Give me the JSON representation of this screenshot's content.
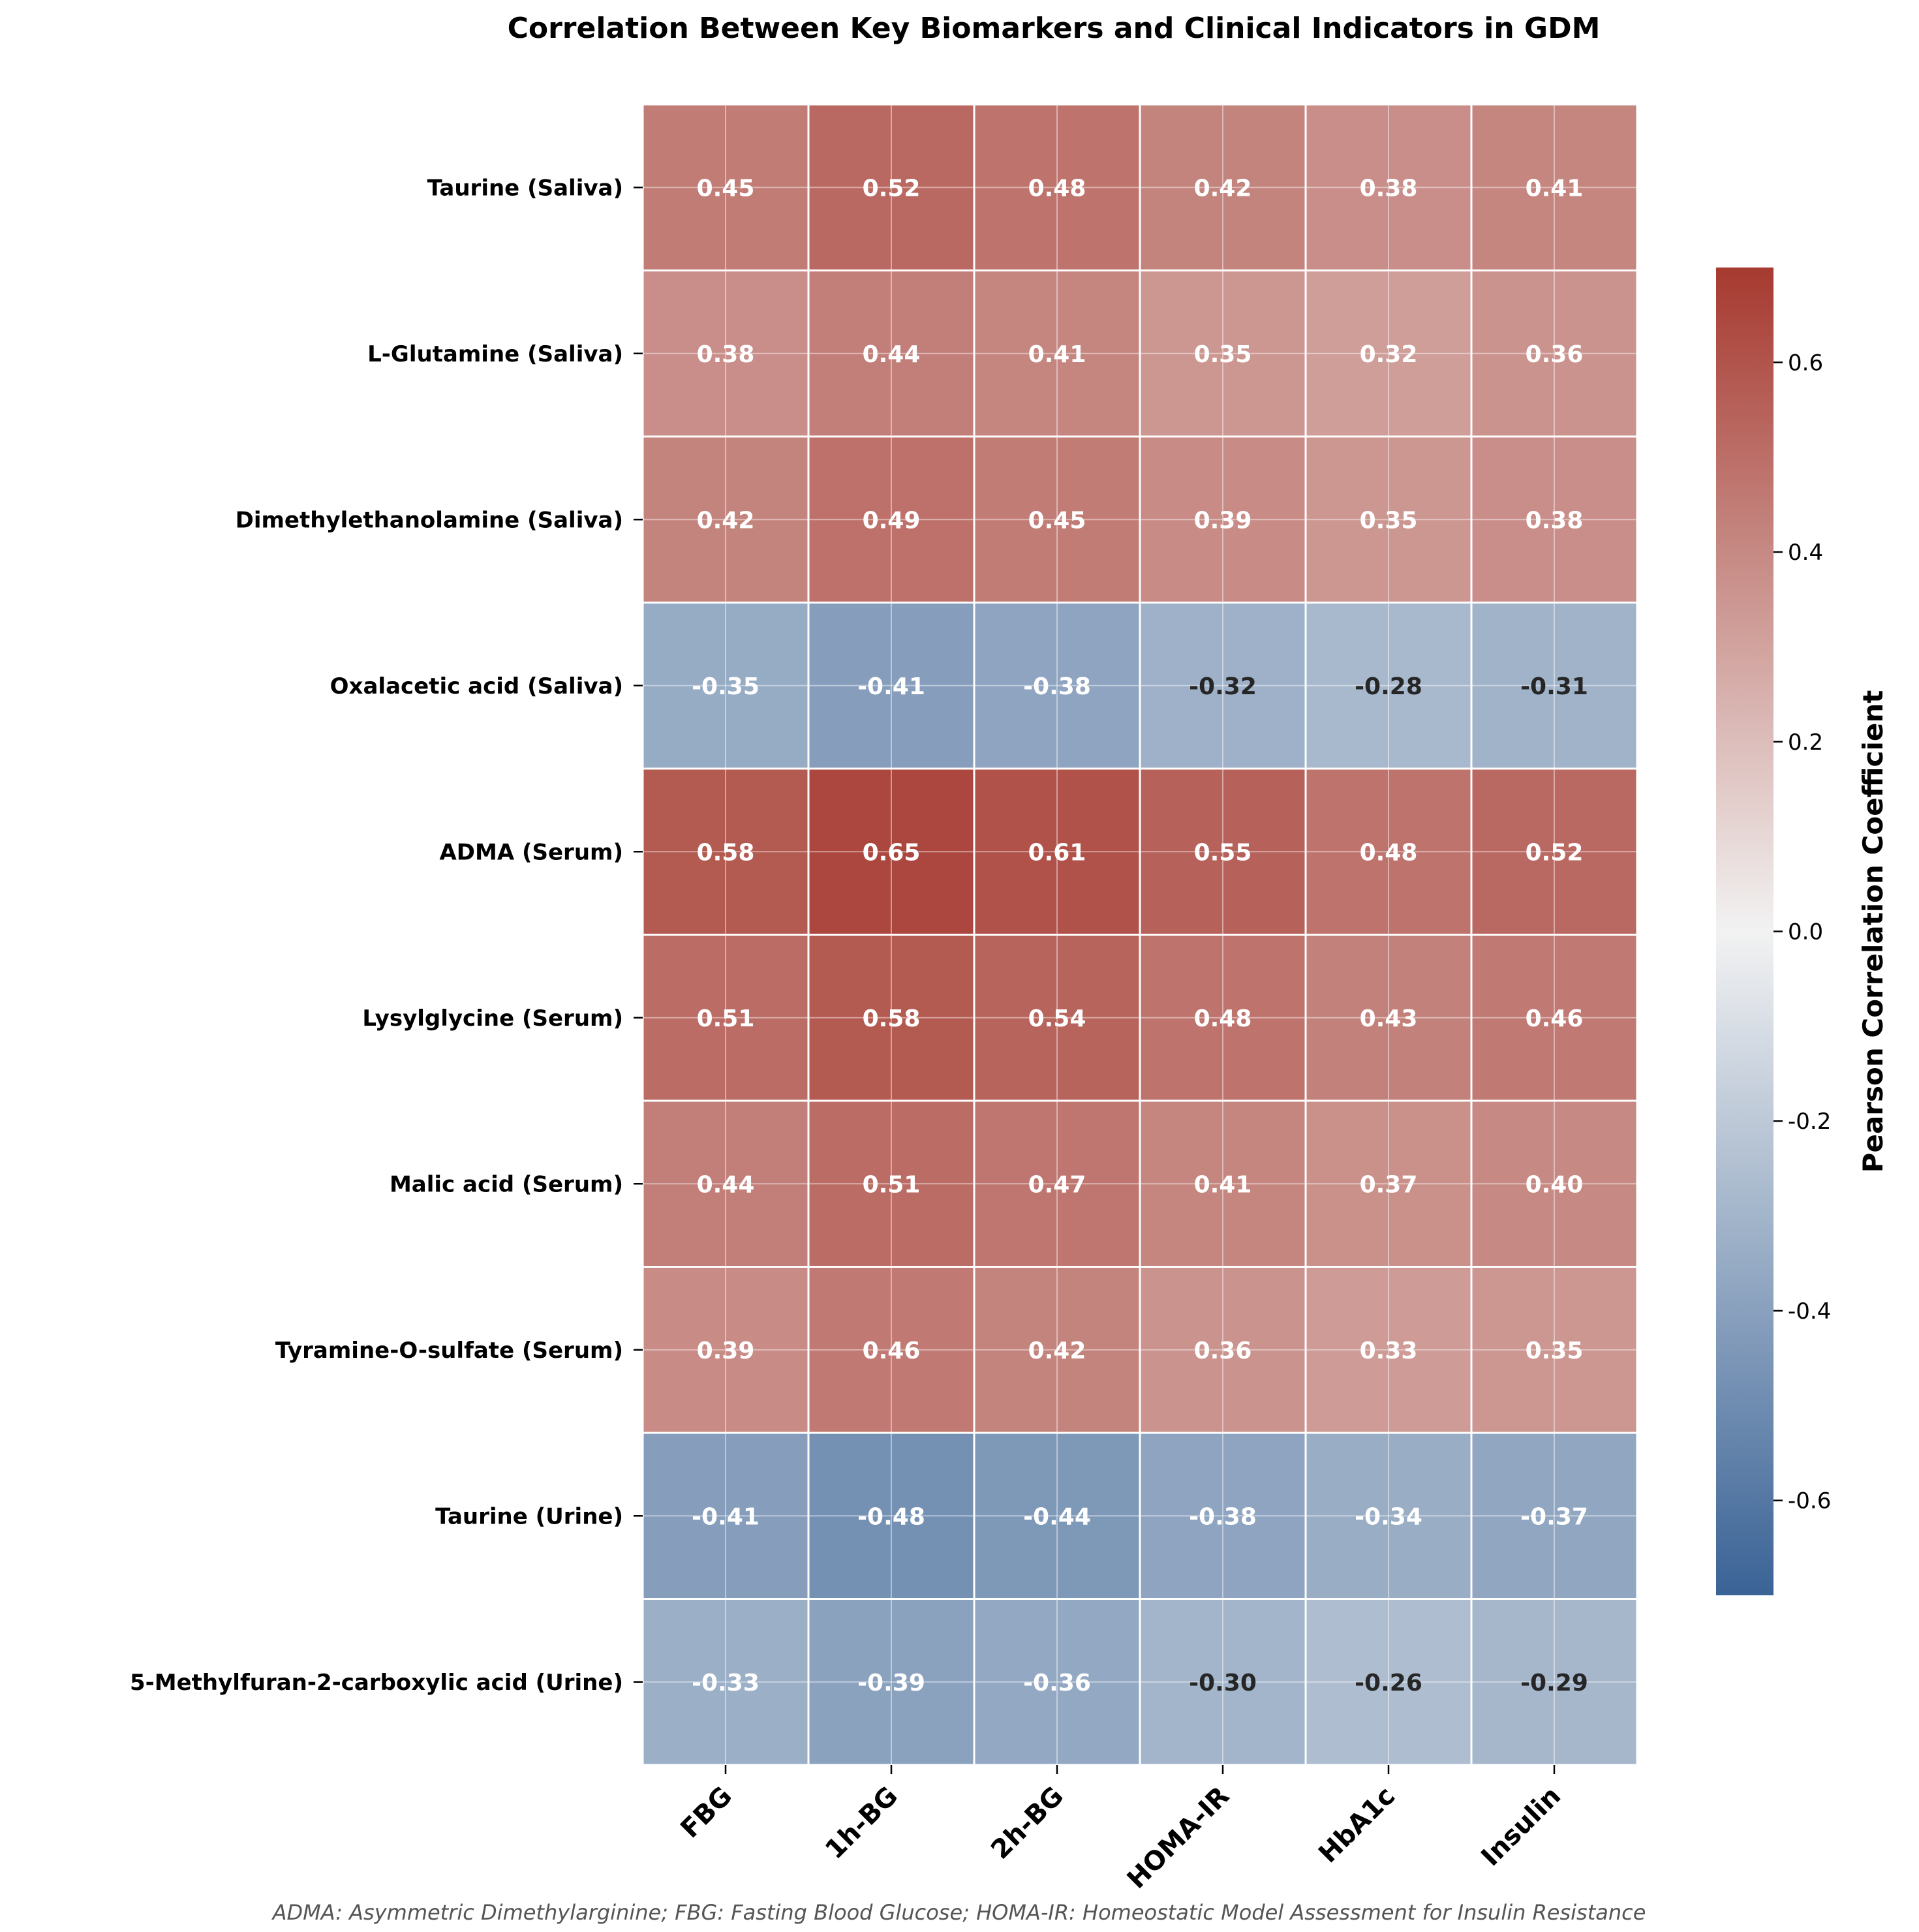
{
  "chart_data": {
    "type": "heatmap",
    "title": "Correlation Between Key Biomarkers and Clinical Indicators in GDM",
    "footnote": "ADMA: Asymmetric Dimethylarginine; FBG: Fasting Blood Glucose; HOMA-IR: Homeostatic Model Assessment for Insulin Resistance",
    "columns": [
      "FBG",
      "1h-BG",
      "2h-BG",
      "HOMA-IR",
      "HbA1c",
      "Insulin"
    ],
    "rows": [
      "Taurine (Saliva)",
      "L-Glutamine (Saliva)",
      "Dimethylethanolamine (Saliva)",
      "Oxalacetic acid (Saliva)",
      "ADMA (Serum)",
      "Lysylglycine (Serum)",
      "Malic acid (Serum)",
      "Tyramine-O-sulfate (Serum)",
      "Taurine (Urine)",
      "5-Methylfuran-2-carboxylic acid (Urine)"
    ],
    "values": [
      [
        0.45,
        0.52,
        0.48,
        0.42,
        0.38,
        0.41
      ],
      [
        0.38,
        0.44,
        0.41,
        0.35,
        0.32,
        0.36
      ],
      [
        0.42,
        0.49,
        0.45,
        0.39,
        0.35,
        0.38
      ],
      [
        -0.35,
        -0.41,
        -0.38,
        -0.32,
        -0.28,
        -0.31
      ],
      [
        0.58,
        0.65,
        0.61,
        0.55,
        0.48,
        0.52
      ],
      [
        0.51,
        0.58,
        0.54,
        0.48,
        0.43,
        0.46
      ],
      [
        0.44,
        0.51,
        0.47,
        0.41,
        0.37,
        0.4
      ],
      [
        0.39,
        0.46,
        0.42,
        0.36,
        0.33,
        0.35
      ],
      [
        -0.41,
        -0.48,
        -0.44,
        -0.38,
        -0.34,
        -0.37
      ],
      [
        -0.33,
        -0.39,
        -0.36,
        -0.3,
        -0.26,
        -0.29
      ]
    ],
    "colorbar": {
      "label": "Pearson Correlation Coefficient",
      "range": [
        -0.7,
        0.7
      ],
      "ticks": [
        -0.6,
        -0.4,
        -0.2,
        0.0,
        0.2,
        0.4,
        0.6
      ],
      "tick_labels": [
        "-0.6",
        "-0.4",
        "-0.2",
        "0.0",
        "0.2",
        "0.4",
        "0.6"
      ],
      "colormap": "diverging blue-white-red",
      "color_low": "#3a6396",
      "color_mid": "#f2f2f2",
      "color_high": "#a63a30"
    },
    "grid": true,
    "annotated": true
  }
}
